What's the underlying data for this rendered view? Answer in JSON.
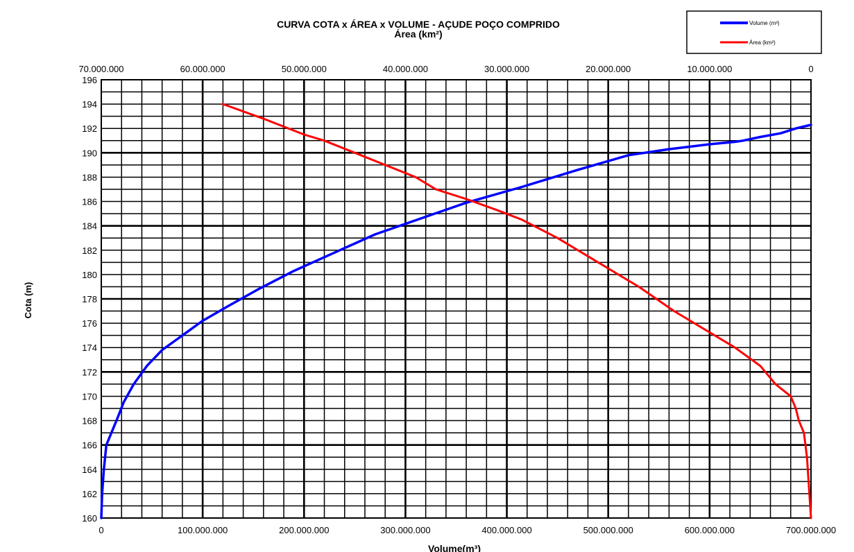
{
  "chart_data": {
    "type": "line",
    "title": "CURVA COTA x ÁREA x VOLUME - AÇUDE POÇO COMPRIDO",
    "ylabel": "Cota (m)",
    "ylim": [
      160,
      196
    ],
    "yticks": [
      160,
      162,
      164,
      166,
      168,
      170,
      172,
      174,
      176,
      178,
      180,
      182,
      184,
      186,
      188,
      190,
      192,
      194,
      196
    ],
    "x_bottom": {
      "label": "Volume(m³)",
      "lim": [
        0,
        700000000
      ],
      "ticks": [
        0,
        100000000,
        200000000,
        300000000,
        400000000,
        500000000,
        600000000,
        700000000
      ],
      "tick_labels": [
        "0",
        "100.000.000",
        "200.000.000",
        "300.000.000",
        "400.000.000",
        "500.000.000",
        "600.000.000",
        "700.000.000"
      ]
    },
    "x_top": {
      "label": "Área (km²)",
      "lim": [
        0,
        70000000
      ],
      "reversed": true,
      "ticks": [
        70000000,
        60000000,
        50000000,
        40000000,
        30000000,
        20000000,
        10000000,
        0
      ],
      "tick_labels": [
        "70.000.000",
        "60.000.000",
        "50.000.000",
        "40.000.000",
        "30.000.000",
        "20.000.000",
        "10.000.000",
        "0"
      ]
    },
    "grid": true,
    "legend_position": "top-right",
    "series": [
      {
        "name": "Volume (m³)",
        "axis": "bottom",
        "color": "#0000ff",
        "x": [
          0,
          800000,
          2500000,
          5000000,
          10000000,
          15000000,
          22000000,
          32000000,
          45000000,
          60000000,
          80000000,
          100000000,
          125000000,
          155000000,
          190000000,
          230000000,
          270000000,
          315000000,
          360000000,
          415000000,
          470000000,
          520000000,
          560000000,
          600000000,
          625000000,
          633000000,
          650000000,
          670000000,
          685000000,
          700000000
        ],
        "y": [
          160,
          162,
          164,
          166,
          167,
          168,
          169.5,
          171,
          172.5,
          173.8,
          175,
          176.2,
          177.4,
          178.8,
          180.3,
          181.8,
          183.3,
          184.6,
          185.9,
          187.2,
          188.6,
          189.8,
          190.3,
          190.7,
          190.9,
          191,
          191.3,
          191.6,
          192,
          192.3
        ]
      },
      {
        "name": "Área (km²)",
        "axis": "top",
        "color": "#ff0000",
        "x": [
          58000000,
          54000000,
          50000000,
          48000000,
          45000000,
          42000000,
          39000000,
          37000000,
          34000000,
          31000000,
          28500000,
          25000000,
          21000000,
          17000000,
          13500000,
          9500000,
          7500000,
          5000000,
          3500000,
          2000000,
          1500000,
          1200000,
          700000,
          400000,
          0
        ],
        "y": [
          194,
          192.8,
          191.5,
          191,
          190,
          189,
          188,
          187,
          186.2,
          185.3,
          184.5,
          183,
          181,
          179,
          177,
          175,
          174,
          172.5,
          171,
          170,
          169,
          168,
          167,
          165,
          160
        ]
      }
    ]
  }
}
